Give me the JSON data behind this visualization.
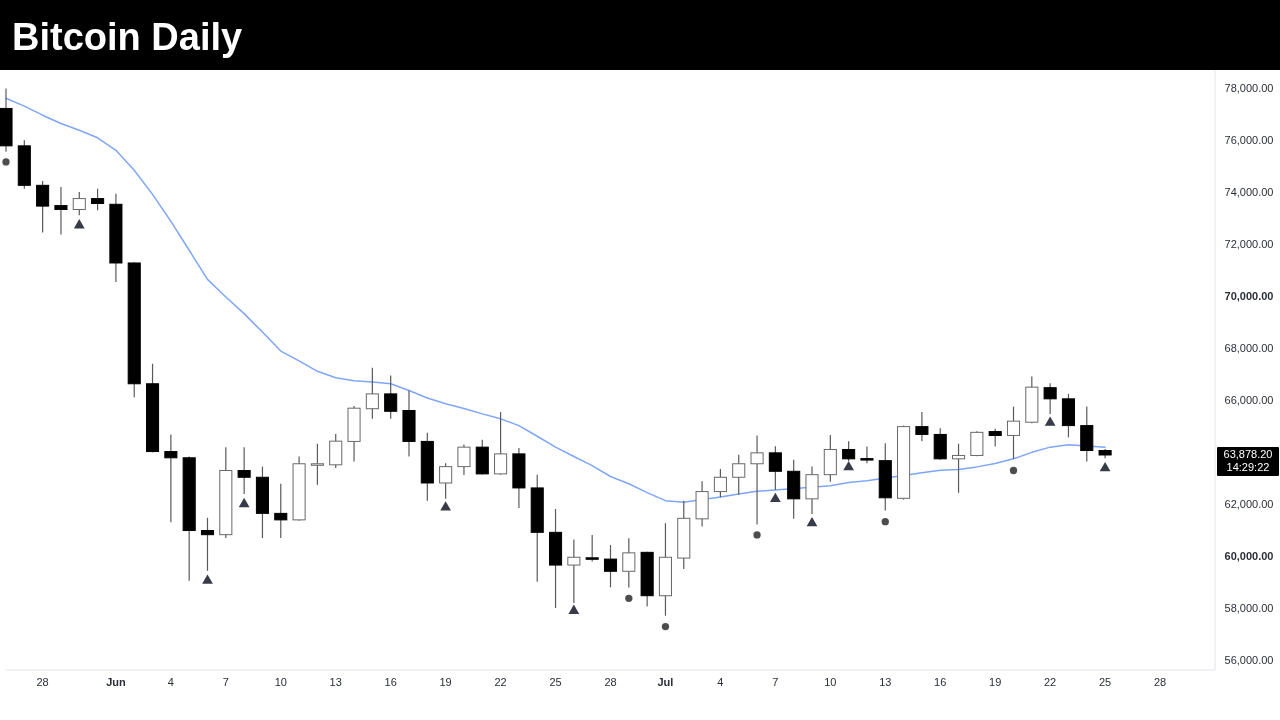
{
  "chart_data": {
    "type": "candlestick",
    "title": "Bitcoin Daily",
    "x": [
      "--05-26",
      "--05-27",
      "--05-28",
      "--05-29",
      "--05-30",
      "--05-31",
      "--06-01",
      "--06-02",
      "--06-03",
      "--06-04",
      "--06-05",
      "--06-06",
      "--06-07",
      "--06-08",
      "--06-09",
      "--06-10",
      "--06-11",
      "--06-12",
      "--06-13",
      "--06-14",
      "--06-15",
      "--06-16",
      "--06-17",
      "--06-18",
      "--06-19",
      "--06-20",
      "--06-21",
      "--06-22",
      "--06-23",
      "--06-24",
      "--06-25",
      "--06-26",
      "--06-27",
      "--06-28",
      "--06-29",
      "--06-30",
      "--07-01",
      "--07-02",
      "--07-03",
      "--07-04",
      "--07-05",
      "--07-06",
      "--07-07",
      "--07-08",
      "--07-09",
      "--07-10",
      "--07-11",
      "--07-12",
      "--07-13",
      "--07-14",
      "--07-15",
      "--07-16",
      "--07-17",
      "--07-18",
      "--07-19",
      "--07-20",
      "--07-21",
      "--07-22",
      "--07-23",
      "--07-24",
      "--07-25"
    ],
    "ohlc": [
      [
        77220,
        77990,
        75550,
        75780
      ],
      [
        75780,
        76000,
        74130,
        74260
      ],
      [
        74260,
        74430,
        72440,
        73460
      ],
      [
        73480,
        74200,
        72370,
        73330
      ],
      [
        73330,
        74000,
        73110,
        73750
      ],
      [
        73750,
        74130,
        73300,
        73560
      ],
      [
        73530,
        73940,
        70540,
        71270
      ],
      [
        71270,
        71300,
        66100,
        66620
      ],
      [
        66620,
        67390,
        63980,
        64010
      ],
      [
        64010,
        64670,
        61290,
        63770
      ],
      [
        63770,
        63820,
        59040,
        60970
      ],
      [
        60970,
        61460,
        59420,
        60810
      ],
      [
        60810,
        64180,
        60680,
        63280
      ],
      [
        63280,
        64180,
        62380,
        63020
      ],
      [
        63020,
        63430,
        60680,
        61630
      ],
      [
        61630,
        62770,
        60680,
        61380
      ],
      [
        61380,
        63820,
        61350,
        63540
      ],
      [
        63530,
        64310,
        62730,
        63540
      ],
      [
        63500,
        64690,
        63380,
        64410
      ],
      [
        64400,
        65760,
        63630,
        65680
      ],
      [
        65660,
        67240,
        65270,
        66230
      ],
      [
        66230,
        66940,
        65270,
        65560
      ],
      [
        65590,
        66360,
        63820,
        64400
      ],
      [
        64400,
        64730,
        62120,
        62800
      ],
      [
        62800,
        63560,
        62190,
        63430
      ],
      [
        63430,
        64280,
        63110,
        64180
      ],
      [
        64180,
        64460,
        63130,
        63150
      ],
      [
        63150,
        65530,
        63120,
        63920
      ],
      [
        63920,
        64150,
        61840,
        62610
      ],
      [
        62610,
        63120,
        59000,
        60900
      ],
      [
        60900,
        61800,
        57990,
        59640
      ],
      [
        59640,
        60620,
        58180,
        59940
      ],
      [
        59920,
        60800,
        59780,
        59890
      ],
      [
        59870,
        60410,
        58780,
        59400
      ],
      [
        59400,
        60670,
        58780,
        60110
      ],
      [
        60130,
        60150,
        58040,
        58460
      ],
      [
        58460,
        61250,
        57690,
        59940
      ],
      [
        59910,
        62120,
        59490,
        61440
      ],
      [
        61420,
        62870,
        61120,
        62470
      ],
      [
        62470,
        63340,
        62250,
        63020
      ],
      [
        63020,
        63890,
        62350,
        63540
      ],
      [
        63540,
        64630,
        61200,
        63960
      ],
      [
        63960,
        64210,
        62530,
        63250
      ],
      [
        63250,
        63690,
        61420,
        62190
      ],
      [
        62190,
        63430,
        61610,
        63120
      ],
      [
        63120,
        64650,
        62850,
        64090
      ],
      [
        64090,
        64410,
        63650,
        63730
      ],
      [
        63740,
        64200,
        63560,
        63710
      ],
      [
        63660,
        64330,
        61740,
        62230
      ],
      [
        62210,
        65010,
        62160,
        64970
      ],
      [
        64970,
        65530,
        64410,
        64670
      ],
      [
        64670,
        64910,
        63690,
        63730
      ],
      [
        63730,
        64310,
        62420,
        63860
      ],
      [
        63860,
        64790,
        63830,
        64750
      ],
      [
        64780,
        64890,
        64200,
        64630
      ],
      [
        64630,
        65740,
        63730,
        65180
      ],
      [
        65140,
        66900,
        65100,
        66490
      ],
      [
        66470,
        66640,
        65460,
        66040
      ],
      [
        66040,
        66230,
        64560,
        65010
      ],
      [
        65010,
        65740,
        63630,
        64050
      ],
      [
        64050,
        64110,
        63750,
        63878.2
      ]
    ],
    "colors": [
      "#000000",
      "#000000",
      "#000000",
      "#000000",
      "#ffffff",
      "#000000",
      "#000000",
      "#000000",
      "#000000",
      "#000000",
      "#000000",
      "#000000",
      "#ffffff",
      "#000000",
      "#000000",
      "#000000",
      "#ffffff",
      "#ffffff",
      "#ffffff",
      "#ffffff",
      "#ffffff",
      "#000000",
      "#000000",
      "#000000",
      "#ffffff",
      "#ffffff",
      "#000000",
      "#ffffff",
      "#000000",
      "#000000",
      "#000000",
      "#ffffff",
      "#000000",
      "#000000",
      "#ffffff",
      "#000000",
      "#ffffff",
      "#ffffff",
      "#ffffff",
      "#ffffff",
      "#ffffff",
      "#ffffff",
      "#000000",
      "#000000",
      "#ffffff",
      "#ffffff",
      "#000000",
      "#000000",
      "#000000",
      "#ffffff",
      "#000000",
      "#000000",
      "#ffffff",
      "#ffffff",
      "#000000",
      "#ffffff",
      "#ffffff",
      "#000000",
      "#000000",
      "#000000",
      "#000000"
    ],
    "series": [
      {
        "type": "line",
        "color": "#7fa6f6",
        "values": [
          77610,
          77310,
          76960,
          76640,
          76380,
          76090,
          75610,
          74840,
          73910,
          72870,
          71760,
          70640,
          69960,
          69320,
          68610,
          67880,
          67500,
          67100,
          66850,
          66740,
          66690,
          66620,
          66360,
          66070,
          65850,
          65670,
          65460,
          65270,
          65010,
          64600,
          64180,
          63820,
          63470,
          63050,
          62770,
          62430,
          62120,
          62060,
          null,
          62260,
          62380,
          62480,
          62530,
          null,
          null,
          62690,
          62820,
          62890,
          null,
          null,
          63190,
          63290,
          63320,
          63420,
          63550,
          63730,
          63980,
          64180,
          64270,
          null,
          64180
        ]
      },
      {
        "type": "scatter",
        "marker": "circle",
        "color": "#4d4d4d",
        "values": [
          75160,
          null,
          null,
          null,
          null,
          null,
          null,
          null,
          null,
          null,
          null,
          null,
          null,
          null,
          null,
          null,
          null,
          null,
          null,
          null,
          null,
          null,
          null,
          null,
          null,
          null,
          null,
          null,
          null,
          null,
          null,
          null,
          null,
          null,
          58360,
          null,
          57270,
          null,
          null,
          null,
          null,
          60800,
          null,
          null,
          null,
          null,
          null,
          null,
          61310,
          null,
          null,
          null,
          null,
          null,
          null,
          63280,
          null,
          null,
          null,
          null,
          null
        ]
      },
      {
        "type": "scatter",
        "marker": "triangle",
        "color": "#373b47",
        "values": [
          null,
          null,
          null,
          null,
          72720,
          null,
          null,
          null,
          null,
          null,
          null,
          59040,
          null,
          61990,
          null,
          null,
          null,
          null,
          null,
          null,
          null,
          null,
          null,
          null,
          61860,
          null,
          null,
          null,
          null,
          null,
          null,
          57880,
          null,
          null,
          null,
          null,
          null,
          null,
          null,
          null,
          null,
          null,
          62190,
          null,
          61250,
          null,
          63410,
          null,
          null,
          null,
          null,
          null,
          null,
          null,
          null,
          null,
          null,
          65120,
          null,
          null,
          63370
        ]
      }
    ],
    "xlim": [
      "--05-26",
      "--07-31"
    ],
    "xticks": [
      {
        "value": "--05-28",
        "label": "28"
      },
      {
        "value": "--06-01",
        "label": "Jun"
      },
      {
        "value": "--06-04",
        "label": "4"
      },
      {
        "value": "--06-07",
        "label": "7"
      },
      {
        "value": "--06-10",
        "label": "10"
      },
      {
        "value": "--06-13",
        "label": "13"
      },
      {
        "value": "--06-16",
        "label": "16"
      },
      {
        "value": "--06-19",
        "label": "19"
      },
      {
        "value": "--06-22",
        "label": "22"
      },
      {
        "value": "--06-25",
        "label": "25"
      },
      {
        "value": "--06-28",
        "label": "28"
      },
      {
        "value": "--07-01",
        "label": "Jul"
      },
      {
        "value": "--07-04",
        "label": "4"
      },
      {
        "value": "--07-07",
        "label": "7"
      },
      {
        "value": "--07-10",
        "label": "10"
      },
      {
        "value": "--07-13",
        "label": "13"
      },
      {
        "value": "--07-16",
        "label": "16"
      },
      {
        "value": "--07-19",
        "label": "19"
      },
      {
        "value": "--07-22",
        "label": "22"
      },
      {
        "value": "--07-25",
        "label": "25"
      },
      {
        "value": "--07-28",
        "label": "28"
      }
    ],
    "ylim": [
      55600,
      78700
    ],
    "yticks": [
      {
        "value": 56000,
        "label": "56,000.00"
      },
      {
        "value": 58000,
        "label": "58,000.00"
      },
      {
        "value": 60000,
        "label": "60,000.00"
      },
      {
        "value": 62000,
        "label": "62,000.00"
      },
      {
        "value": 66000,
        "label": "66,000.00"
      },
      {
        "value": 68000,
        "label": "68,000.00"
      },
      {
        "value": 70000,
        "label": "70,000.00"
      },
      {
        "value": 72000,
        "label": "72,000.00"
      },
      {
        "value": 74000,
        "label": "74,000.00"
      },
      {
        "value": 76000,
        "label": "76,000.00"
      },
      {
        "value": 78000,
        "label": "78,000.00"
      }
    ],
    "annotations": [
      "63,878.20",
      "14:29:22"
    ]
  }
}
